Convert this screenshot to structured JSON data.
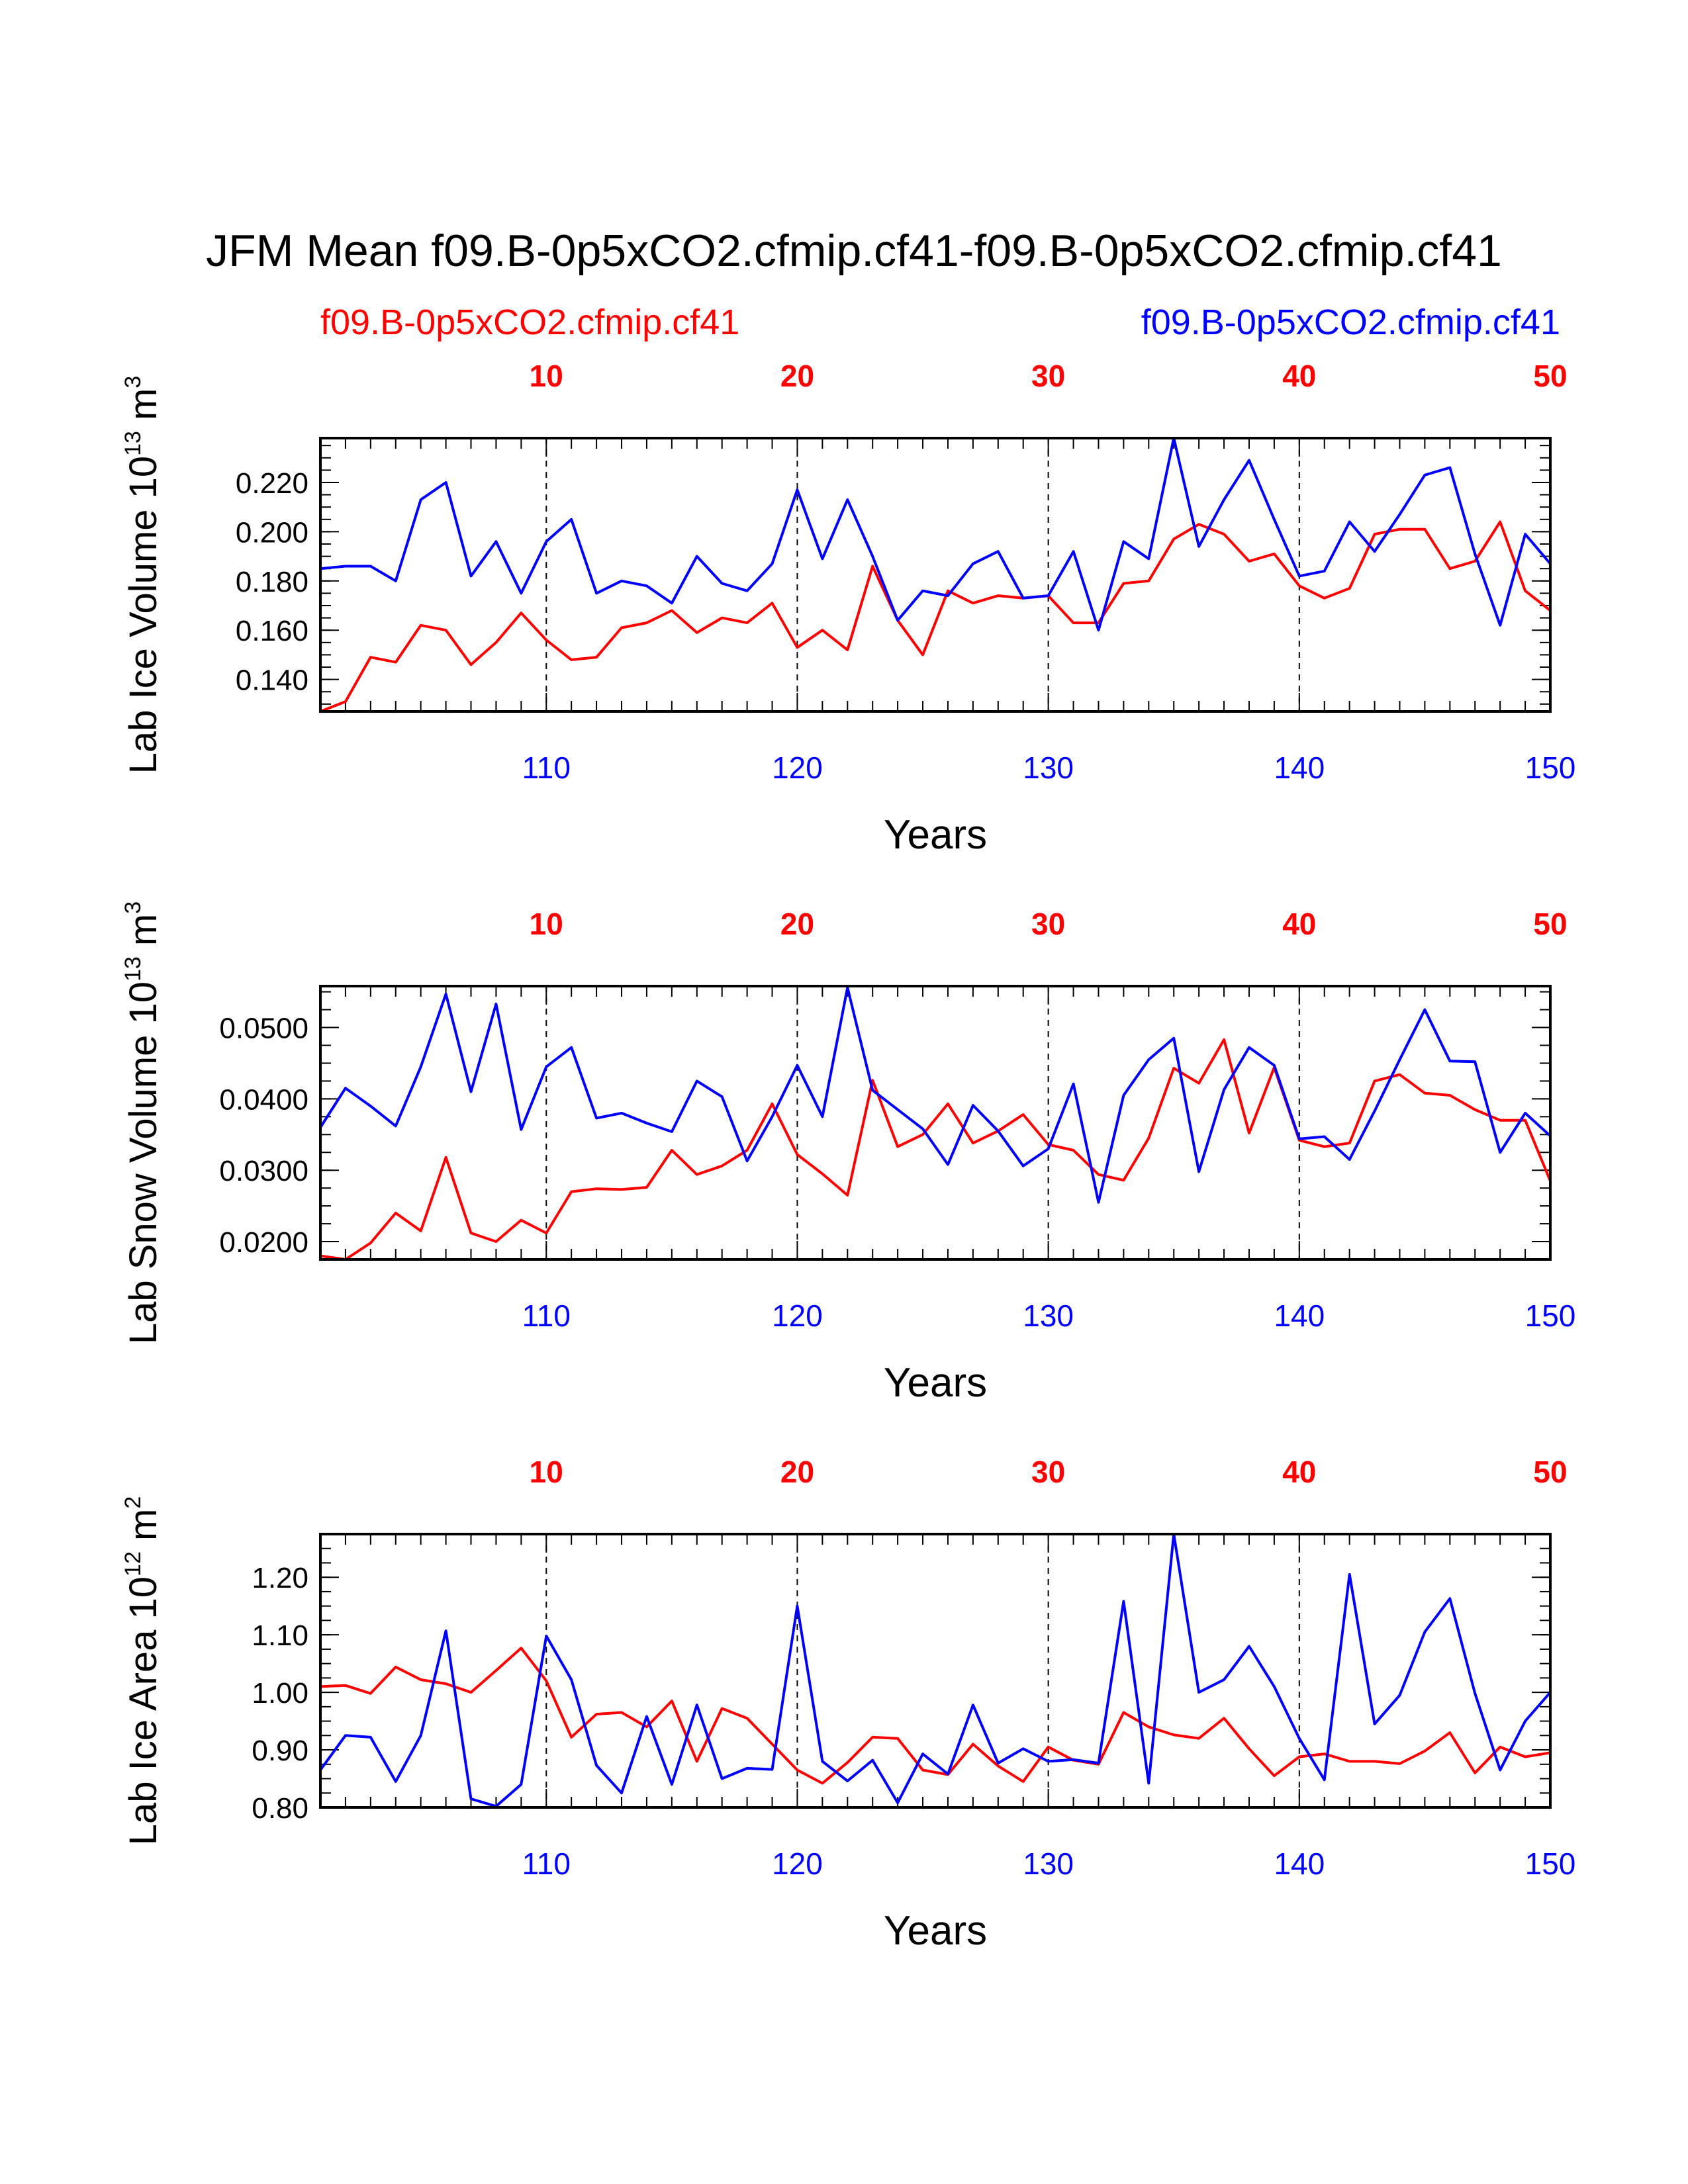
{
  "chart_data": {
    "type": "line",
    "title": "JFM Mean f09.B-0p5xCO2.cfmip.cf41-f09.B-0p5xCO2.cfmip.cf41",
    "legend": [
      {
        "name": "f09.B-0p5xCO2.cfmip.cf41",
        "color": "#ff0000",
        "position": "top-left"
      },
      {
        "name": "f09.B-0p5xCO2.cfmip.cf41",
        "color": "#0000ff",
        "position": "top-right"
      }
    ],
    "colors": {
      "red_series": "#ff0000",
      "blue_series": "#0000ff",
      "axes": "#000000"
    },
    "x_bottom": {
      "label": "Years",
      "range": [
        101,
        150
      ],
      "ticks": [
        "110",
        "120",
        "130",
        "140",
        "150"
      ]
    },
    "x_top": {
      "range": [
        1,
        50
      ],
      "ticks": [
        "10",
        "20",
        "30",
        "40",
        "50"
      ]
    },
    "reference_lines_at": [
      110,
      120,
      130,
      140
    ],
    "panels": [
      {
        "ylabel": "Lab Ice Volume 10",
        "ylabel_exponent": "13",
        "ylabel_unit": "m",
        "ylabel_unit_exponent": "3",
        "ylim": [
          0.127,
          0.238
        ],
        "yticks": [
          0.14,
          0.16,
          0.18,
          0.2,
          0.22
        ],
        "ytick_labels": [
          "0.140",
          "0.160",
          "0.180",
          "0.200",
          "0.220"
        ],
        "xlabel": "Years",
        "series": [
          {
            "name": "red",
            "values": [
              0.127,
              0.131,
              0.149,
              0.147,
              0.162,
              0.16,
              0.146,
              0.155,
              0.167,
              0.156,
              0.148,
              0.149,
              0.161,
              0.163,
              0.168,
              0.159,
              0.165,
              0.163,
              0.171,
              0.153,
              0.16,
              0.152,
              0.186,
              0.164,
              0.15,
              0.176,
              0.171,
              0.174,
              0.173,
              0.174,
              0.163,
              0.163,
              0.179,
              0.18,
              0.197,
              0.203,
              0.199,
              0.188,
              0.191,
              0.178,
              0.173,
              0.177,
              0.199,
              0.201,
              0.201,
              0.185,
              0.188,
              0.204,
              0.176,
              0.168
            ]
          },
          {
            "name": "blue",
            "values": [
              0.185,
              0.186,
              0.186,
              0.18,
              0.213,
              0.22,
              0.182,
              0.196,
              0.175,
              0.196,
              0.205,
              0.175,
              0.18,
              0.178,
              0.171,
              0.19,
              0.179,
              0.176,
              0.187,
              0.217,
              0.189,
              0.213,
              0.19,
              0.164,
              0.176,
              0.174,
              0.187,
              0.192,
              0.173,
              0.174,
              0.192,
              0.16,
              0.196,
              0.189,
              0.238,
              0.194,
              0.213,
              0.229,
              0.205,
              0.182,
              0.184,
              0.204,
              0.192,
              0.207,
              0.223,
              0.226,
              0.191,
              0.162,
              0.199,
              0.187
            ]
          }
        ]
      },
      {
        "ylabel": "Lab Snow Volume 10",
        "ylabel_exponent": "13",
        "ylabel_unit": "m",
        "ylabel_unit_exponent": "3",
        "ylim": [
          0.0175,
          0.0558
        ],
        "yticks": [
          0.02,
          0.03,
          0.04,
          0.05
        ],
        "ytick_labels": [
          "0.0200",
          "0.0300",
          "0.0400",
          "0.0500"
        ],
        "xlabel": "Years",
        "series": [
          {
            "name": "red",
            "values": [
              0.018,
              0.0175,
              0.0198,
              0.024,
              0.0215,
              0.0318,
              0.0212,
              0.02,
              0.023,
              0.0212,
              0.027,
              0.0274,
              0.0273,
              0.0276,
              0.0328,
              0.0294,
              0.0306,
              0.0328,
              0.0393,
              0.0322,
              0.0295,
              0.0265,
              0.0426,
              0.0333,
              0.035,
              0.0393,
              0.0338,
              0.0355,
              0.0378,
              0.0336,
              0.0328,
              0.0294,
              0.0286,
              0.0345,
              0.0443,
              0.0422,
              0.0483,
              0.0352,
              0.0444,
              0.0342,
              0.0333,
              0.0338,
              0.0425,
              0.0434,
              0.0408,
              0.0405,
              0.0385,
              0.037,
              0.037,
              0.0285
            ]
          },
          {
            "name": "blue",
            "values": [
              0.036,
              0.0415,
              0.039,
              0.0362,
              0.0445,
              0.0547,
              0.041,
              0.0533,
              0.0357,
              0.0445,
              0.0472,
              0.0373,
              0.038,
              0.0366,
              0.0354,
              0.0425,
              0.0403,
              0.0313,
              0.0375,
              0.0447,
              0.0375,
              0.0556,
              0.0412,
              0.0385,
              0.0358,
              0.0308,
              0.0391,
              0.0355,
              0.0306,
              0.033,
              0.0421,
              0.0255,
              0.0405,
              0.0455,
              0.0485,
              0.0298,
              0.0413,
              0.0472,
              0.0447,
              0.0344,
              0.0347,
              0.0315,
              0.0383,
              0.0455,
              0.0525,
              0.0453,
              0.0452,
              0.0325,
              0.038,
              0.0348
            ]
          }
        ]
      },
      {
        "ylabel": "Lab Ice Area 10",
        "ylabel_exponent": "12",
        "ylabel_unit": "m",
        "ylabel_unit_exponent": "2",
        "ylim": [
          0.8,
          1.275
        ],
        "yticks": [
          0.8,
          0.9,
          1.0,
          1.1,
          1.2
        ],
        "ytick_labels": [
          "0.80",
          "0.90",
          "1.00",
          "1.10",
          "1.20"
        ],
        "xlabel": "Years",
        "series": [
          {
            "name": "red",
            "values": [
              1.01,
              1.012,
              0.998,
              1.044,
              1.022,
              1.015,
              1.0,
              1.038,
              1.077,
              1.02,
              0.922,
              0.962,
              0.965,
              0.94,
              0.985,
              0.88,
              0.972,
              0.955,
              0.91,
              0.865,
              0.842,
              0.878,
              0.922,
              0.92,
              0.865,
              0.857,
              0.91,
              0.872,
              0.845,
              0.905,
              0.882,
              0.875,
              0.965,
              0.94,
              0.926,
              0.92,
              0.955,
              0.902,
              0.855,
              0.888,
              0.893,
              0.88,
              0.88,
              0.876,
              0.898,
              0.93,
              0.86,
              0.905,
              0.888,
              0.895
            ]
          },
          {
            "name": "blue",
            "values": [
              0.865,
              0.925,
              0.922,
              0.845,
              0.925,
              1.107,
              0.815,
              0.802,
              0.84,
              1.098,
              1.022,
              0.873,
              0.825,
              0.958,
              0.84,
              0.978,
              0.85,
              0.868,
              0.866,
              1.15,
              0.88,
              0.846,
              0.882,
              0.808,
              0.893,
              0.858,
              0.978,
              0.877,
              0.902,
              0.88,
              0.883,
              0.877,
              1.158,
              0.842,
              1.275,
              1.0,
              1.022,
              1.08,
              1.01,
              0.92,
              0.848,
              1.205,
              0.945,
              0.995,
              1.105,
              1.163,
              0.998,
              0.865,
              0.95,
              1.0
            ]
          }
        ]
      }
    ]
  }
}
